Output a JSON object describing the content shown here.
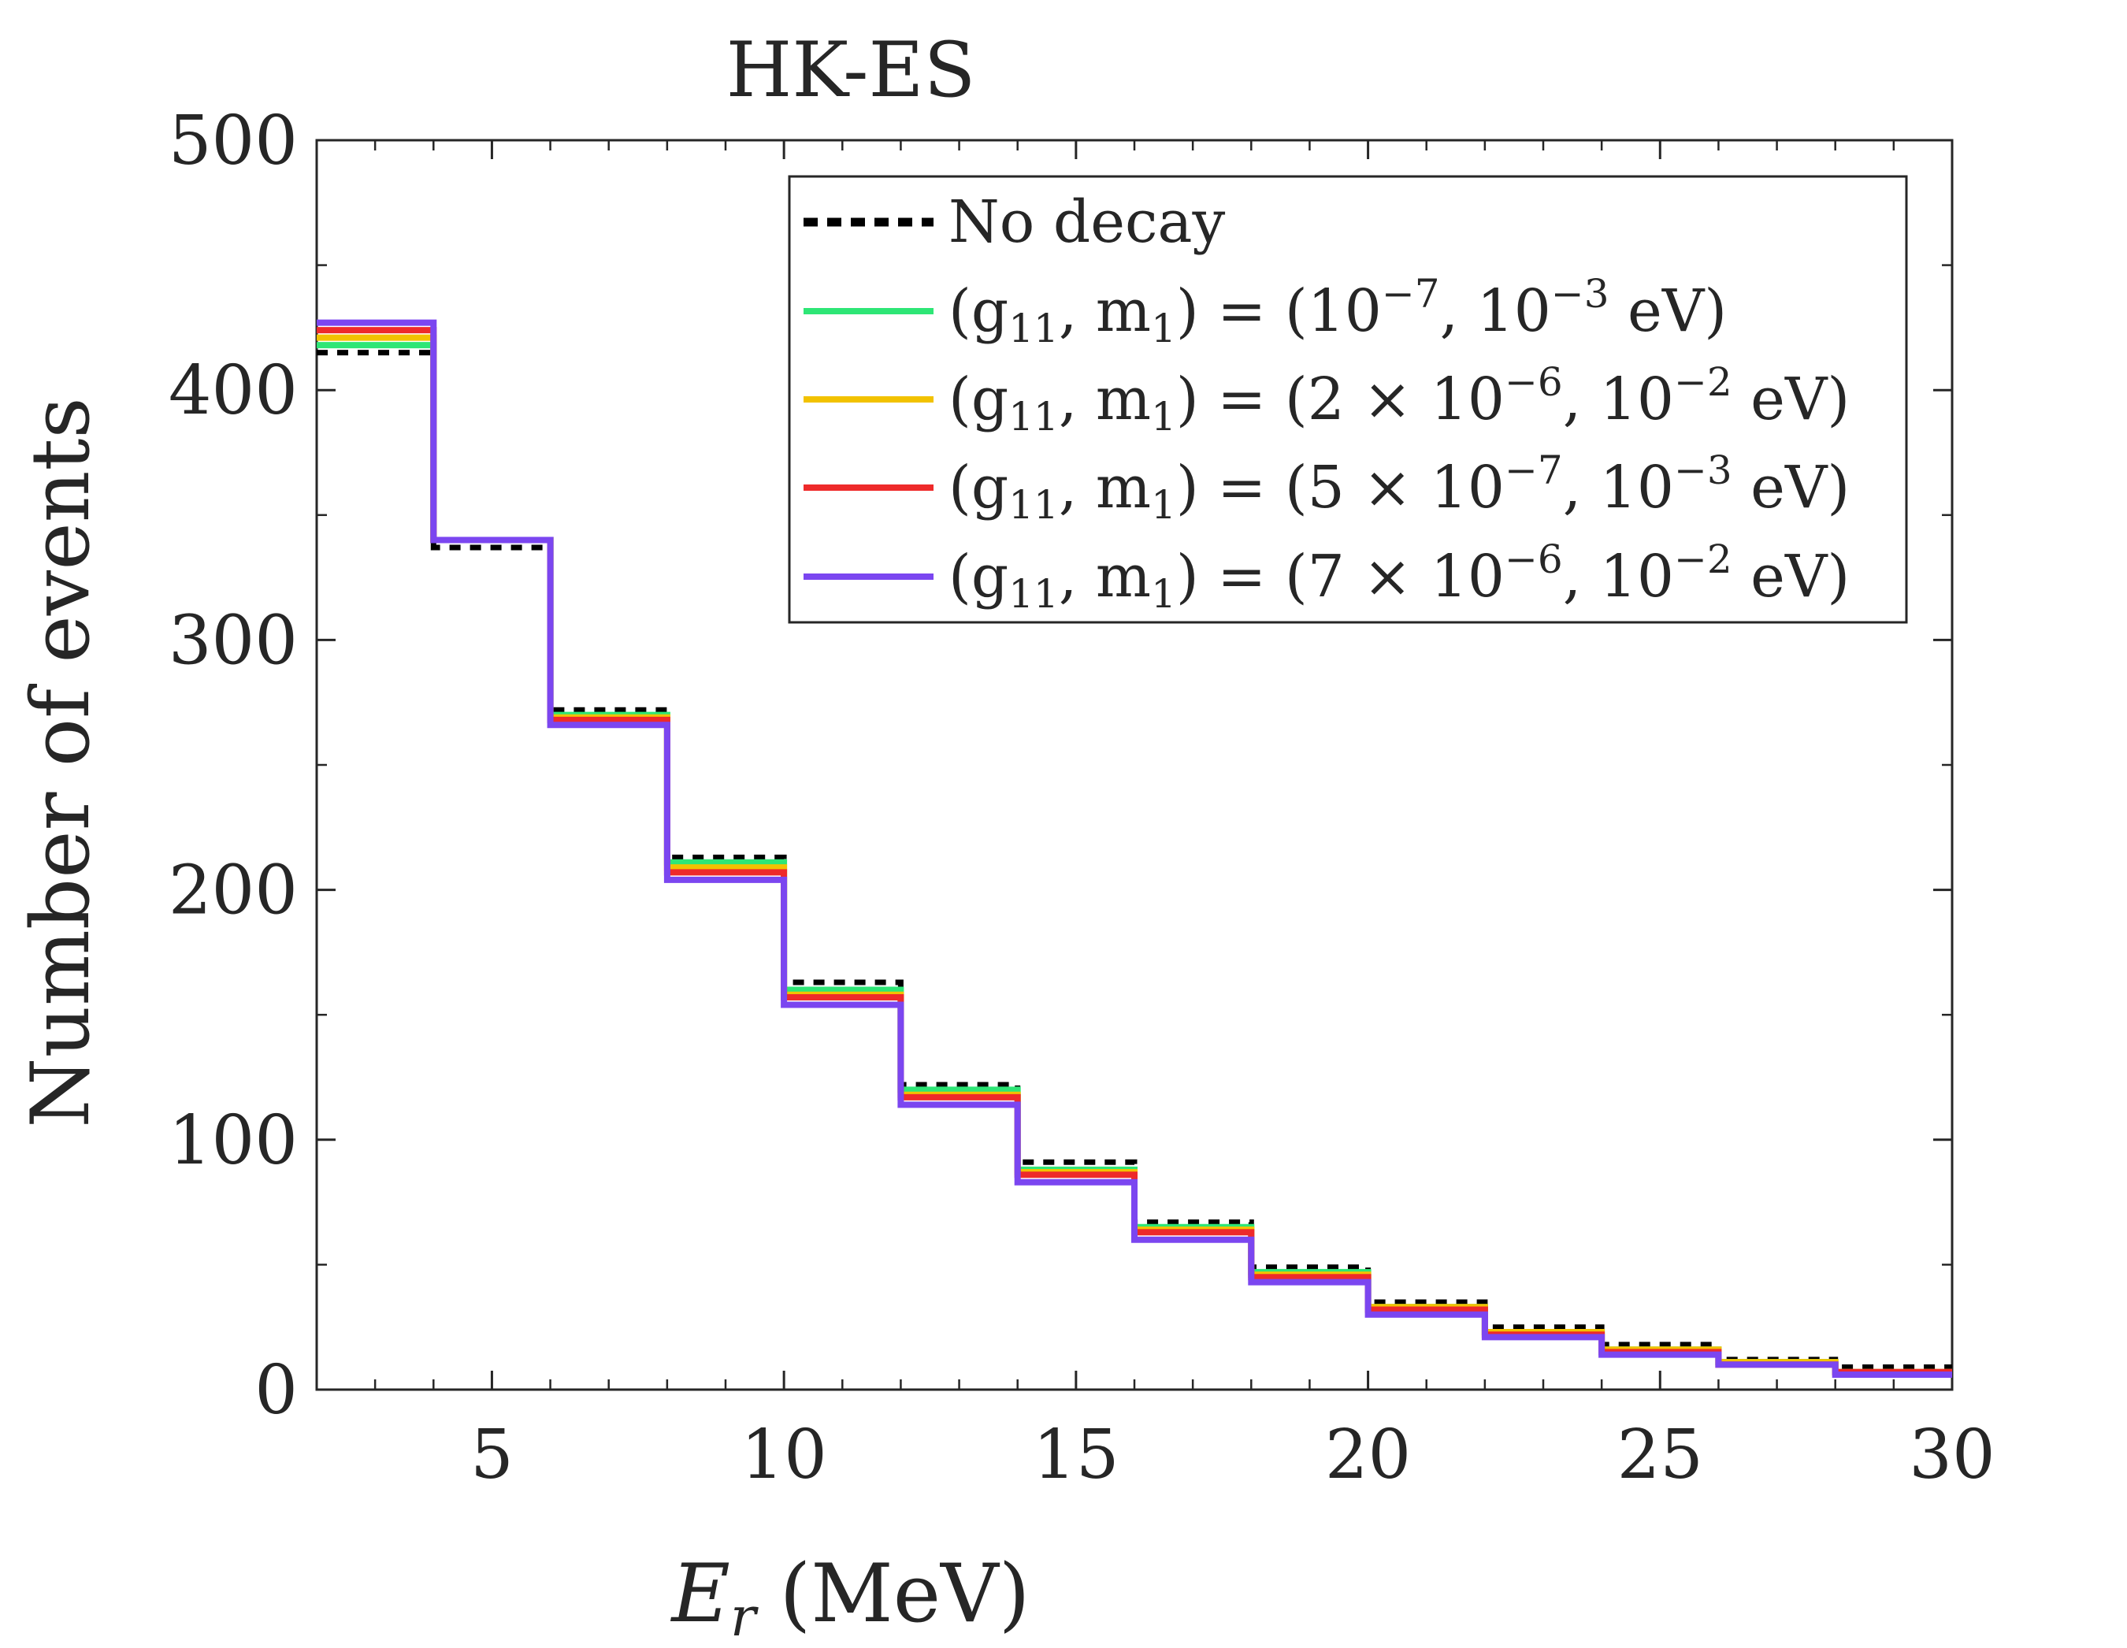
{
  "chart_data": {
    "type": "step-histogram",
    "title": "HK-ES",
    "xlabel": "E_r (MeV)",
    "xlabel_main": "E",
    "xlabel_sub": "r",
    "xlabel_unit": "(MeV)",
    "ylabel": "Number of events",
    "xlim": [
      2,
      30
    ],
    "ylim": [
      0,
      500
    ],
    "x_major_ticks": [
      5,
      10,
      15,
      20,
      25,
      30
    ],
    "x_minor_ticks": [
      3,
      4,
      6,
      7,
      8,
      9,
      11,
      12,
      13,
      14,
      16,
      17,
      18,
      19,
      21,
      22,
      23,
      24,
      26,
      27,
      28,
      29
    ],
    "y_major_ticks": [
      0,
      100,
      200,
      300,
      400,
      500
    ],
    "y_minor_ticks": [
      50,
      150,
      250,
      350,
      450
    ],
    "x_tick_labels": [
      "5",
      "10",
      "15",
      "20",
      "25",
      "30"
    ],
    "y_tick_labels": [
      "0",
      "100",
      "200",
      "300",
      "400",
      "500"
    ],
    "bin_edges": [
      2,
      4,
      6,
      8,
      10,
      12,
      14,
      16,
      18,
      20,
      22,
      24,
      26,
      28,
      30
    ],
    "legend_location": "top-right",
    "series": [
      {
        "name": "No decay",
        "style": "dotted",
        "color": "#000000",
        "values": [
          415,
          337,
          272,
          213,
          163,
          122,
          91,
          67,
          49,
          35,
          25,
          18,
          12,
          9
        ]
      },
      {
        "name": "(g11, m1) = (10^-7, 10^-3 eV)",
        "style": "solid",
        "color": "#2ee676",
        "values": [
          418,
          340,
          270,
          211,
          160,
          120,
          88,
          65,
          47,
          33,
          23,
          16,
          11,
          7
        ]
      },
      {
        "name": "(g11, m1) = (2 × 10^-6, 10^-2 eV)",
        "style": "solid",
        "color": "#f2c200",
        "values": [
          421,
          340,
          269,
          209,
          158,
          118,
          87,
          64,
          46,
          33,
          23,
          16,
          11,
          7
        ]
      },
      {
        "name": "(g11, m1) = (5 × 10^-7, 10^-3 eV)",
        "style": "solid",
        "color": "#ee2a2a",
        "values": [
          424,
          340,
          268,
          207,
          157,
          117,
          86,
          63,
          45,
          32,
          22,
          15,
          10,
          7
        ]
      },
      {
        "name": "(g11, m1) = (7 × 10^-6, 10^-2 eV)",
        "style": "solid",
        "color": "#7b46f0",
        "values": [
          427,
          340,
          266,
          204,
          154,
          114,
          83,
          60,
          43,
          30,
          21,
          14,
          10,
          6
        ]
      }
    ],
    "legend_labels": [
      {
        "plain": "No decay"
      },
      {
        "pre": "(g",
        "sub1": "11",
        "mid1": ", m",
        "sub2": "1",
        "mid2": ") = (10",
        "sup1": "−7",
        "mid3": ", 10",
        "sup2": "−3",
        "post": " eV)"
      },
      {
        "pre": "(g",
        "sub1": "11",
        "mid1": ", m",
        "sub2": "1",
        "mid2": ") = (2 × 10",
        "sup1": "−6",
        "mid3": ", 10",
        "sup2": "−2",
        "post": " eV)"
      },
      {
        "pre": "(g",
        "sub1": "11",
        "mid1": ", m",
        "sub2": "1",
        "mid2": ") = (5 × 10",
        "sup1": "−7",
        "mid3": ", 10",
        "sup2": "−3",
        "post": " eV)"
      },
      {
        "pre": "(g",
        "sub1": "11",
        "mid1": ", m",
        "sub2": "1",
        "mid2": ") = (7 × 10",
        "sup1": "−6",
        "mid3": ", 10",
        "sup2": "−2",
        "post": " eV)"
      }
    ]
  }
}
